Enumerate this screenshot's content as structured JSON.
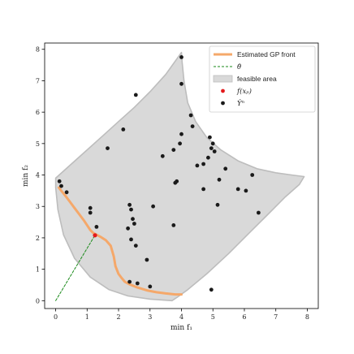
{
  "chart_data": {
    "type": "scatter",
    "xlabel": "min f₁",
    "ylabel": "min f₂",
    "xlim": [
      -0.35,
      8.35
    ],
    "ylim": [
      -0.25,
      8.2
    ],
    "xticks": [
      "0",
      "1",
      "2",
      "3",
      "4",
      "5",
      "6",
      "7",
      "8"
    ],
    "yticks": [
      "0",
      "1",
      "2",
      "3",
      "4",
      "5",
      "6",
      "7",
      "8"
    ],
    "grid": false,
    "legend_position": "top-right",
    "legend": [
      {
        "label": "Estimated GP front",
        "kind": "line",
        "color": "#f5a86a"
      },
      {
        "label": "θ̂",
        "kind": "dashed",
        "color": "#1a8a1a"
      },
      {
        "label": "feasible area",
        "kind": "patch",
        "color": "#d9d9d9"
      },
      {
        "label": "f(xₚ)",
        "kind": "dot",
        "color": "#e31a1c"
      },
      {
        "label": "Ŷⁿ",
        "kind": "dot",
        "color": "#1a1a1a"
      }
    ],
    "feasible_area": [
      [
        0.0,
        3.9
      ],
      [
        0.5,
        4.35
      ],
      [
        1.0,
        4.8
      ],
      [
        1.5,
        5.25
      ],
      [
        2.0,
        5.7
      ],
      [
        2.5,
        6.15
      ],
      [
        3.0,
        6.65
      ],
      [
        3.5,
        7.2
      ],
      [
        4.0,
        7.9
      ],
      [
        4.02,
        7.6
      ],
      [
        4.08,
        7.0
      ],
      [
        4.2,
        6.3
      ],
      [
        4.45,
        5.7
      ],
      [
        4.8,
        5.2
      ],
      [
        5.25,
        4.8
      ],
      [
        5.8,
        4.45
      ],
      [
        6.4,
        4.2
      ],
      [
        7.0,
        4.07
      ],
      [
        7.5,
        4.0
      ],
      [
        7.9,
        3.95
      ],
      [
        7.75,
        3.7
      ],
      [
        7.3,
        3.3
      ],
      [
        6.8,
        2.8
      ],
      [
        6.2,
        2.2
      ],
      [
        5.5,
        1.5
      ],
      [
        4.8,
        0.85
      ],
      [
        4.2,
        0.35
      ],
      [
        3.85,
        0.1
      ],
      [
        3.7,
        0.0
      ],
      [
        3.0,
        0.05
      ],
      [
        2.3,
        0.15
      ],
      [
        1.7,
        0.35
      ],
      [
        1.1,
        0.75
      ],
      [
        0.6,
        1.35
      ],
      [
        0.25,
        2.1
      ],
      [
        0.07,
        2.9
      ],
      [
        0.0,
        3.6
      ]
    ],
    "series": [
      {
        "name": "Estimated GP front",
        "kind": "line",
        "color": "#f5a86a",
        "x": [
          0.1,
          0.18,
          0.3,
          0.45,
          0.6,
          0.75,
          0.9,
          1.0,
          1.1,
          1.2,
          1.3,
          1.45,
          1.6,
          1.75,
          1.85,
          1.9,
          2.0,
          2.1,
          2.2,
          2.35,
          2.6,
          2.9,
          3.2,
          3.5,
          3.8,
          4.0
        ],
        "y": [
          3.6,
          3.5,
          3.35,
          3.15,
          2.95,
          2.75,
          2.55,
          2.4,
          2.25,
          2.15,
          2.1,
          2.02,
          1.92,
          1.75,
          1.4,
          1.1,
          0.85,
          0.72,
          0.6,
          0.52,
          0.42,
          0.33,
          0.27,
          0.23,
          0.2,
          0.2
        ]
      },
      {
        "name": "θ̂",
        "kind": "dashed-line",
        "color": "#1a8a1a",
        "x": [
          0.0,
          1.27
        ],
        "y": [
          0.0,
          2.12
        ]
      },
      {
        "name": "f(xₚ)",
        "kind": "scatter",
        "color": "#e31a1c",
        "x": [
          1.25
        ],
        "y": [
          2.08
        ]
      },
      {
        "name": "Ŷⁿ",
        "kind": "scatter",
        "color": "#1a1a1a",
        "x": [
          0.12,
          0.18,
          0.35,
          1.1,
          1.1,
          1.3,
          1.65,
          2.15,
          2.35,
          2.4,
          2.5,
          2.45,
          2.55,
          2.3,
          2.4,
          2.6,
          3.0,
          3.1,
          3.4,
          3.75,
          3.8,
          3.85,
          3.75,
          3.95,
          4.0,
          4.0,
          4.3,
          4.35,
          4.5,
          4.7,
          4.85,
          4.95,
          4.9,
          5.0,
          5.05,
          5.2,
          5.4,
          4.7,
          5.15,
          5.8,
          6.05,
          6.25,
          6.45,
          4.0,
          2.35,
          2.55,
          2.9,
          4.95
        ],
        "y": [
          3.8,
          3.65,
          3.45,
          2.95,
          2.8,
          2.35,
          4.85,
          5.45,
          3.05,
          2.9,
          2.45,
          2.6,
          6.55,
          2.3,
          1.95,
          0.55,
          0.45,
          3.0,
          4.6,
          4.8,
          3.75,
          3.8,
          2.4,
          5.0,
          5.3,
          6.9,
          5.9,
          5.55,
          4.3,
          4.35,
          4.55,
          4.85,
          5.2,
          5.0,
          4.75,
          3.85,
          4.2,
          3.55,
          3.05,
          3.55,
          3.5,
          4.0,
          2.8,
          7.75,
          0.6,
          1.75,
          1.3,
          0.35
        ]
      }
    ]
  }
}
